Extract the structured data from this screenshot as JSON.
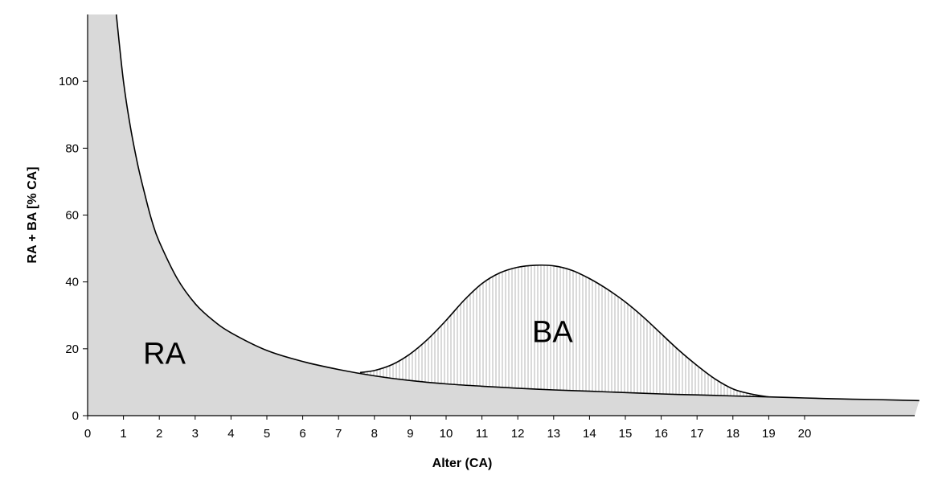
{
  "chart_data": {
    "type": "area",
    "title": "",
    "xlabel": "Alter (CA)",
    "ylabel": "RA + BA [% CA]",
    "xlim": [
      0,
      23.2
    ],
    "ylim": [
      0,
      120
    ],
    "xticks": [
      0,
      1,
      2,
      3,
      4,
      5,
      6,
      7,
      8,
      9,
      10,
      11,
      12,
      13,
      14,
      15,
      16,
      17,
      18,
      19,
      20
    ],
    "yticks": [
      0,
      20,
      40,
      60,
      80,
      100
    ],
    "colors": {
      "ra_fill": "#d9d9d9",
      "ba_hatch": "#b4b4b4",
      "line": "#000000"
    },
    "series": [
      {
        "name": "RA",
        "label": "RA",
        "x": [
          0.8,
          1.0,
          1.2,
          1.4,
          1.6,
          1.8,
          2.0,
          2.5,
          3.0,
          3.5,
          4.0,
          5.0,
          6.0,
          7.0,
          8.0,
          9.0,
          10.0,
          11.0,
          12.0,
          13.0,
          14.0,
          15.0,
          16.0,
          17.0,
          18.0,
          19.0,
          20.0,
          21.0,
          22.0,
          23.2
        ],
        "values": [
          120,
          100,
          86,
          75,
          66,
          58,
          52,
          41,
          33.5,
          28.5,
          24.8,
          19.5,
          16.2,
          13.8,
          11.9,
          10.5,
          9.5,
          8.8,
          8.2,
          7.7,
          7.3,
          6.9,
          6.5,
          6.2,
          5.9,
          5.6,
          5.3,
          5.0,
          4.8,
          4.5
        ]
      },
      {
        "name": "RA + BA",
        "label": "BA",
        "x": [
          7.6,
          8.0,
          8.5,
          9.0,
          9.5,
          10.0,
          10.5,
          11.0,
          11.5,
          12.0,
          12.5,
          13.0,
          13.5,
          14.0,
          14.5,
          15.0,
          15.5,
          16.0,
          16.5,
          17.0,
          17.5,
          18.0,
          18.5,
          19.0
        ],
        "values": [
          12.9,
          13.5,
          15.3,
          18.5,
          23.0,
          28.5,
          34.5,
          39.5,
          42.7,
          44.4,
          45.0,
          44.8,
          43.5,
          41.0,
          37.8,
          34.0,
          29.5,
          24.5,
          19.5,
          15.0,
          11.0,
          8.0,
          6.5,
          5.6
        ]
      }
    ]
  }
}
